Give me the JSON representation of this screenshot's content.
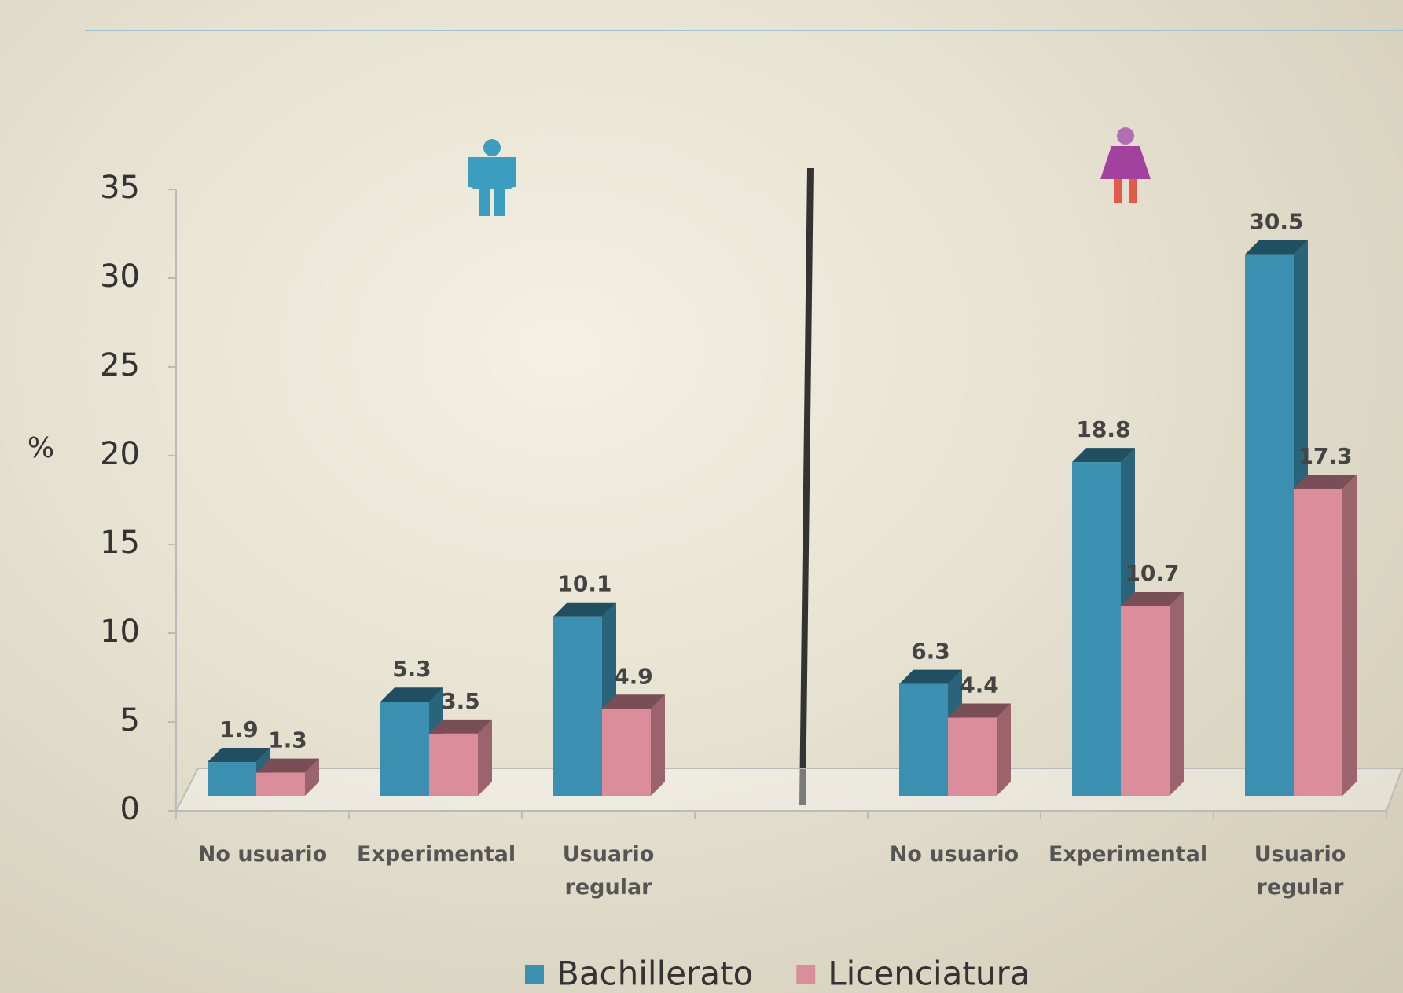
{
  "chart_data": {
    "type": "bar3d",
    "y_label": "%",
    "categories": [
      "No usuario",
      "Experimental",
      "Usuario regular",
      null,
      "No usuario",
      "Experimental",
      "Usuario regular"
    ],
    "series": [
      {
        "name": "Bachillerato",
        "color": "#3b8fb0",
        "values": [
          1.9,
          5.3,
          10.1,
          null,
          6.3,
          18.8,
          30.5
        ]
      },
      {
        "name": "Licenciatura",
        "color": "#dc8d9c",
        "values": [
          1.3,
          3.5,
          4.9,
          null,
          4.4,
          10.7,
          17.3
        ]
      }
    ],
    "ylim": [
      0,
      35
    ],
    "yticks": [
      0,
      5,
      10,
      15,
      20,
      25,
      30,
      35
    ],
    "legend": "bottom"
  }
}
